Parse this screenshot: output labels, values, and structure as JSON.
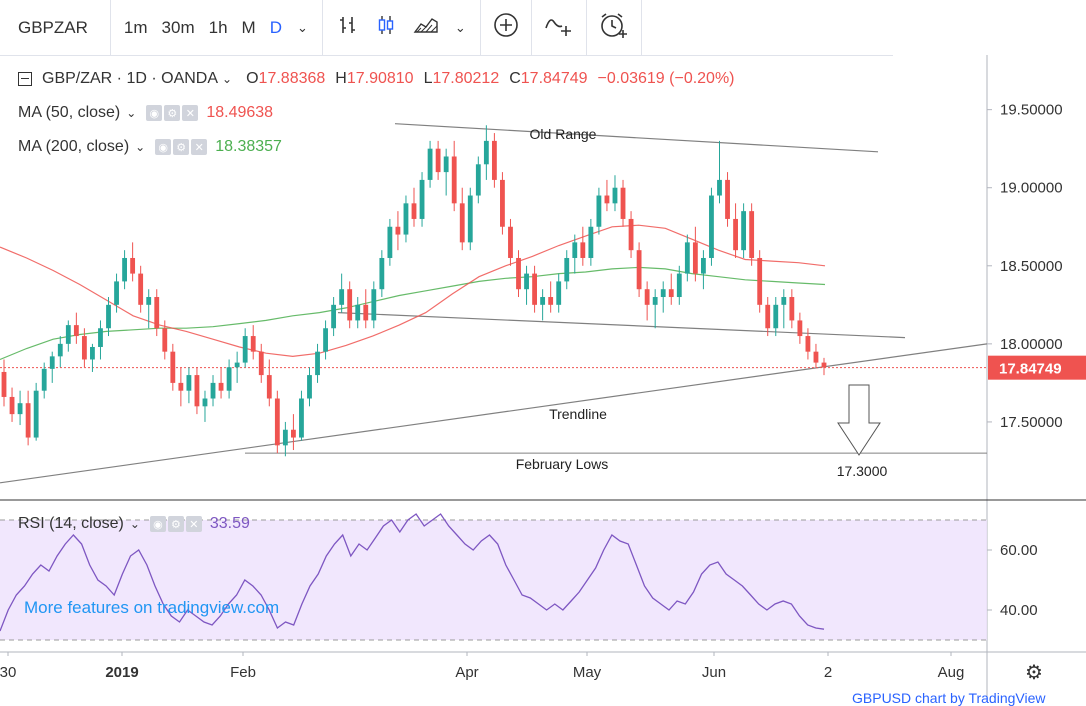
{
  "toolbar": {
    "symbol": "GBPZAR",
    "intervals": [
      "1m",
      "30m",
      "1h",
      "M",
      "D"
    ],
    "active_interval": "D"
  },
  "legend": {
    "title": "GBP/ZAR · 1D · OANDA",
    "open_label": "O",
    "open": "17.88368",
    "high_label": "H",
    "high": "17.90810",
    "low_label": "L",
    "low": "17.80212",
    "close_label": "C",
    "close": "17.84749",
    "change": "−0.03619 (−0.20%)",
    "ma50_label": "MA (50, close)",
    "ma50_value": "18.49638",
    "ma50_color": "#ef5350",
    "ma200_label": "MA (200, close)",
    "ma200_value": "18.38357",
    "ma200_color": "#4caf50",
    "rsi_label": "RSI (14, close)",
    "rsi_value": "33.59",
    "rsi_color": "#7e57c2"
  },
  "promo": "More features on tradingview.com",
  "footer": "GBPUSD chart by TradingView",
  "chart_data": {
    "type": "candlestick",
    "price_axis": {
      "ticks": [
        "19.50000",
        "19.00000",
        "18.50000",
        "18.00000",
        "17.50000"
      ],
      "range": [
        17.0,
        19.85
      ]
    },
    "last_price": "17.84749",
    "time_axis": {
      "labels": [
        "30",
        "2019",
        "Feb",
        "Apr",
        "May",
        "Jun",
        "2",
        "Aug"
      ]
    },
    "annotations": [
      "Old Range",
      "Trendline",
      "February Lows",
      "17.3000"
    ],
    "colors": {
      "up": "#26a69a",
      "down": "#ef5350",
      "ma50": "#ef5350",
      "ma200": "#4caf50",
      "rsi": "#7e57c2"
    },
    "ma50": [
      18.62,
      18.55,
      18.47,
      18.38,
      18.28,
      18.18,
      18.12,
      18.08,
      18.03,
      17.98,
      17.94,
      17.92,
      17.94,
      17.99,
      18.05,
      18.12,
      18.2,
      18.32,
      18.43,
      18.5,
      18.56,
      18.63,
      18.69,
      18.75,
      18.76,
      18.74,
      18.67,
      18.6,
      18.54,
      18.53,
      18.52,
      18.5
    ],
    "ma200": [
      17.9,
      17.97,
      18.03,
      18.06,
      18.08,
      18.09,
      18.1,
      18.1,
      18.11,
      18.13,
      18.15,
      18.18,
      18.2,
      18.23,
      18.27,
      18.31,
      18.34,
      18.37,
      18.4,
      18.42,
      18.43,
      18.45,
      18.46,
      18.48,
      18.49,
      18.48,
      18.45,
      18.43,
      18.41,
      18.4,
      18.39,
      18.38
    ],
    "ohlc": [
      [
        17.82,
        17.9,
        17.6,
        17.66
      ],
      [
        17.66,
        17.72,
        17.5,
        17.55
      ],
      [
        17.55,
        17.7,
        17.48,
        17.62
      ],
      [
        17.62,
        17.7,
        17.35,
        17.4
      ],
      [
        17.4,
        17.75,
        17.38,
        17.7
      ],
      [
        17.7,
        17.88,
        17.65,
        17.84
      ],
      [
        17.84,
        17.95,
        17.75,
        17.92
      ],
      [
        17.92,
        18.05,
        17.85,
        18.0
      ],
      [
        18.0,
        18.15,
        17.95,
        18.12
      ],
      [
        18.12,
        18.2,
        18.0,
        18.05
      ],
      [
        18.05,
        18.1,
        17.85,
        17.9
      ],
      [
        17.9,
        18.0,
        17.82,
        17.98
      ],
      [
        17.98,
        18.15,
        17.9,
        18.1
      ],
      [
        18.1,
        18.3,
        18.05,
        18.25
      ],
      [
        18.25,
        18.45,
        18.2,
        18.4
      ],
      [
        18.4,
        18.6,
        18.35,
        18.55
      ],
      [
        18.55,
        18.65,
        18.4,
        18.45
      ],
      [
        18.45,
        18.5,
        18.2,
        18.25
      ],
      [
        18.25,
        18.35,
        18.1,
        18.3
      ],
      [
        18.3,
        18.35,
        18.05,
        18.1
      ],
      [
        18.1,
        18.15,
        17.9,
        17.95
      ],
      [
        17.95,
        18.0,
        17.7,
        17.75
      ],
      [
        17.75,
        17.85,
        17.6,
        17.7
      ],
      [
        17.7,
        17.85,
        17.62,
        17.8
      ],
      [
        17.8,
        17.85,
        17.55,
        17.6
      ],
      [
        17.6,
        17.7,
        17.5,
        17.65
      ],
      [
        17.65,
        17.8,
        17.6,
        17.75
      ],
      [
        17.75,
        17.85,
        17.65,
        17.7
      ],
      [
        17.7,
        17.9,
        17.65,
        17.85
      ],
      [
        17.85,
        17.95,
        17.75,
        17.88
      ],
      [
        17.88,
        18.1,
        17.85,
        18.05
      ],
      [
        18.05,
        18.12,
        17.9,
        17.95
      ],
      [
        17.95,
        18.0,
        17.75,
        17.8
      ],
      [
        17.8,
        17.9,
        17.6,
        17.65
      ],
      [
        17.65,
        17.7,
        17.3,
        17.35
      ],
      [
        17.35,
        17.5,
        17.28,
        17.45
      ],
      [
        17.45,
        17.55,
        17.32,
        17.4
      ],
      [
        17.4,
        17.7,
        17.38,
        17.65
      ],
      [
        17.65,
        17.85,
        17.6,
        17.8
      ],
      [
        17.8,
        18.0,
        17.75,
        17.95
      ],
      [
        17.95,
        18.15,
        17.9,
        18.1
      ],
      [
        18.1,
        18.3,
        18.05,
        18.25
      ],
      [
        18.25,
        18.45,
        18.2,
        18.35
      ],
      [
        18.35,
        18.4,
        18.1,
        18.15
      ],
      [
        18.15,
        18.3,
        18.1,
        18.25
      ],
      [
        18.25,
        18.35,
        18.1,
        18.15
      ],
      [
        18.15,
        18.4,
        18.1,
        18.35
      ],
      [
        18.35,
        18.6,
        18.3,
        18.55
      ],
      [
        18.55,
        18.8,
        18.5,
        18.75
      ],
      [
        18.75,
        18.85,
        18.6,
        18.7
      ],
      [
        18.7,
        18.95,
        18.65,
        18.9
      ],
      [
        18.9,
        19.0,
        18.75,
        18.8
      ],
      [
        18.8,
        19.1,
        18.75,
        19.05
      ],
      [
        19.05,
        19.3,
        19.0,
        19.25
      ],
      [
        19.25,
        19.3,
        19.05,
        19.1
      ],
      [
        19.1,
        19.25,
        18.95,
        19.2
      ],
      [
        19.2,
        19.3,
        18.85,
        18.9
      ],
      [
        18.9,
        19.0,
        18.6,
        18.65
      ],
      [
        18.65,
        19.0,
        18.6,
        18.95
      ],
      [
        18.95,
        19.2,
        18.9,
        19.15
      ],
      [
        19.15,
        19.4,
        19.05,
        19.3
      ],
      [
        19.3,
        19.35,
        19.0,
        19.05
      ],
      [
        19.05,
        19.1,
        18.7,
        18.75
      ],
      [
        18.75,
        18.8,
        18.5,
        18.55
      ],
      [
        18.55,
        18.6,
        18.3,
        18.35
      ],
      [
        18.35,
        18.5,
        18.25,
        18.45
      ],
      [
        18.45,
        18.5,
        18.2,
        18.25
      ],
      [
        18.25,
        18.35,
        18.15,
        18.3
      ],
      [
        18.3,
        18.4,
        18.2,
        18.25
      ],
      [
        18.25,
        18.45,
        18.2,
        18.4
      ],
      [
        18.4,
        18.6,
        18.35,
        18.55
      ],
      [
        18.55,
        18.7,
        18.45,
        18.65
      ],
      [
        18.65,
        18.75,
        18.5,
        18.55
      ],
      [
        18.55,
        18.8,
        18.5,
        18.75
      ],
      [
        18.75,
        19.0,
        18.7,
        18.95
      ],
      [
        18.95,
        19.05,
        18.85,
        18.9
      ],
      [
        18.9,
        19.08,
        18.85,
        19.0
      ],
      [
        19.0,
        19.05,
        18.75,
        18.8
      ],
      [
        18.8,
        18.85,
        18.55,
        18.6
      ],
      [
        18.6,
        18.65,
        18.3,
        18.35
      ],
      [
        18.35,
        18.4,
        18.15,
        18.25
      ],
      [
        18.25,
        18.35,
        18.1,
        18.3
      ],
      [
        18.3,
        18.4,
        18.2,
        18.35
      ],
      [
        18.35,
        18.45,
        18.25,
        18.3
      ],
      [
        18.3,
        18.5,
        18.25,
        18.45
      ],
      [
        18.45,
        18.7,
        18.4,
        18.65
      ],
      [
        18.65,
        18.75,
        18.4,
        18.45
      ],
      [
        18.45,
        18.6,
        18.35,
        18.55
      ],
      [
        18.55,
        19.0,
        18.5,
        18.95
      ],
      [
        18.95,
        19.3,
        18.9,
        19.05
      ],
      [
        19.05,
        19.1,
        18.75,
        18.8
      ],
      [
        18.8,
        18.9,
        18.55,
        18.6
      ],
      [
        18.6,
        18.9,
        18.55,
        18.85
      ],
      [
        18.85,
        18.9,
        18.5,
        18.55
      ],
      [
        18.55,
        18.6,
        18.2,
        18.25
      ],
      [
        18.25,
        18.3,
        18.05,
        18.1
      ],
      [
        18.1,
        18.3,
        18.05,
        18.25
      ],
      [
        18.25,
        18.35,
        18.1,
        18.3
      ],
      [
        18.3,
        18.35,
        18.1,
        18.15
      ],
      [
        18.15,
        18.2,
        18.0,
        18.05
      ],
      [
        18.05,
        18.1,
        17.9,
        17.95
      ],
      [
        17.95,
        18.0,
        17.85,
        17.88
      ],
      [
        17.88,
        17.91,
        17.8,
        17.85
      ]
    ],
    "rsi": {
      "ticks": [
        "60.00",
        "40.00"
      ],
      "range": [
        27,
        75
      ],
      "bands": [
        30,
        70
      ],
      "values": [
        33,
        40,
        45,
        48,
        52,
        55,
        53,
        58,
        62,
        65,
        62,
        55,
        50,
        48,
        45,
        52,
        58,
        60,
        55,
        48,
        42,
        38,
        36,
        40,
        38,
        36,
        35,
        38,
        42,
        45,
        50,
        48,
        45,
        40,
        34,
        36,
        35,
        42,
        48,
        52,
        58,
        62,
        65,
        58,
        62,
        60,
        64,
        68,
        70,
        66,
        70,
        72,
        68,
        70,
        72,
        68,
        65,
        62,
        60,
        63,
        65,
        62,
        55,
        50,
        45,
        44,
        42,
        40,
        42,
        40,
        43,
        46,
        50,
        54,
        60,
        65,
        63,
        62,
        55,
        48,
        44,
        42,
        40,
        43,
        42,
        46,
        52,
        55,
        56,
        52,
        50,
        48,
        45,
        42,
        40,
        42,
        43,
        42,
        38,
        35,
        34,
        33.59
      ]
    }
  }
}
